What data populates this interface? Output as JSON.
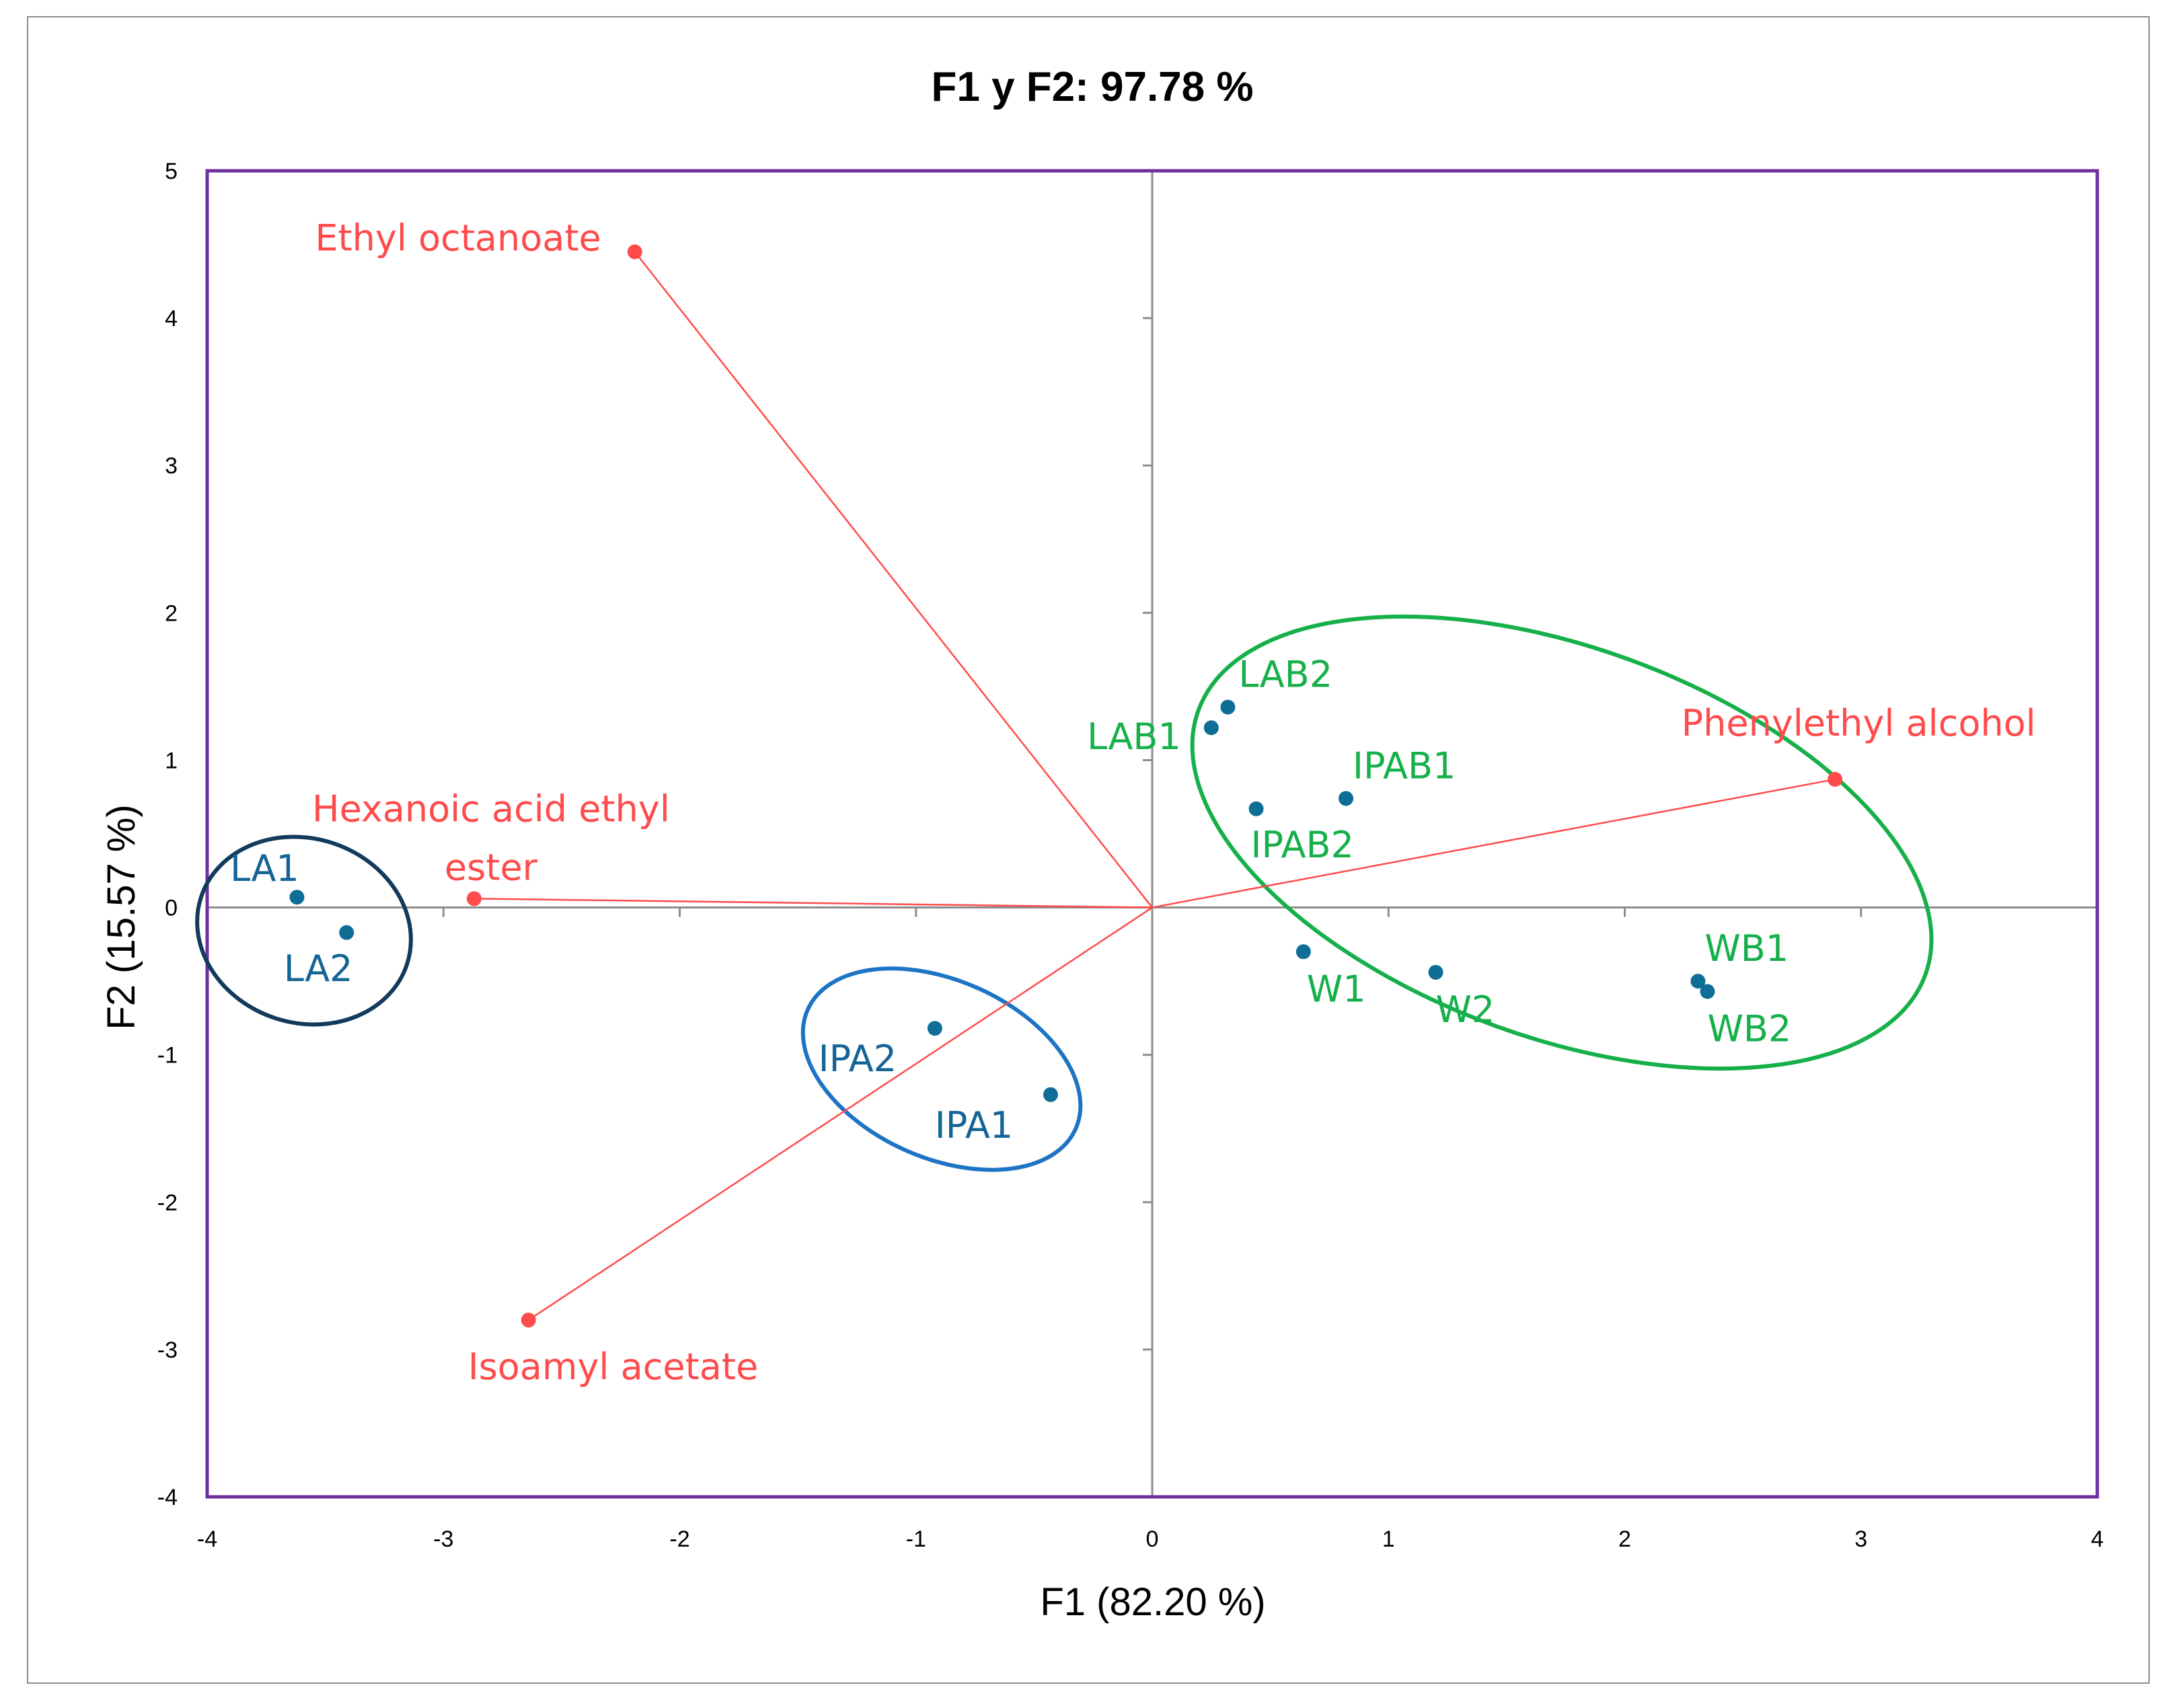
{
  "chart_data": {
    "type": "scatter",
    "title": "F1 y F2: 97.78 %",
    "xlabel": "F1 (82.20 %)",
    "ylabel": "F2 (15.57 %)",
    "xlim": [
      -4,
      4
    ],
    "ylim": [
      -4,
      5
    ],
    "xticks": [
      -4,
      -3,
      -2,
      -1,
      0,
      1,
      2,
      3,
      4
    ],
    "yticks": [
      -4,
      -3,
      -2,
      -1,
      0,
      1,
      2,
      3,
      4,
      5
    ],
    "colors": {
      "variable": "#ff4b4b",
      "observation_point": "#0f6e96",
      "label_la": "#146496",
      "label_green": "#16b04a",
      "ellipse_la": "#123a5c",
      "ellipse_ipa": "#1e74c4",
      "ellipse_green": "#16b04a",
      "frame": "#7030a0",
      "axis": "#8c8c8c"
    },
    "variables": [
      {
        "name": "Ethyl octanoate",
        "x": -2.19,
        "y": 4.45
      },
      {
        "name": "Hexanoic acid ethyl ester",
        "line1": "Hexanoic acid ethyl",
        "line2": "ester",
        "x": -2.87,
        "y": 0.06
      },
      {
        "name": "Isoamyl acetate",
        "x": -2.64,
        "y": -2.8
      },
      {
        "name": "Phenylethyl alcohol",
        "x": 2.89,
        "y": 0.87
      }
    ],
    "observations": [
      {
        "name": "LA1",
        "x": -3.62,
        "y": 0.07,
        "group": "LA"
      },
      {
        "name": "LA2",
        "x": -3.41,
        "y": -0.17,
        "group": "LA"
      },
      {
        "name": "IPA2",
        "x": -0.92,
        "y": -0.82,
        "group": "IPA"
      },
      {
        "name": "IPA1",
        "x": -0.43,
        "y": -1.27,
        "group": "IPA"
      },
      {
        "name": "LAB1",
        "x": 0.25,
        "y": 1.22,
        "group": "B"
      },
      {
        "name": "LAB2",
        "x": 0.32,
        "y": 1.36,
        "group": "B"
      },
      {
        "name": "IPAB1",
        "x": 0.82,
        "y": 0.74,
        "group": "B"
      },
      {
        "name": "IPAB2",
        "x": 0.44,
        "y": 0.67,
        "group": "B"
      },
      {
        "name": "W1",
        "x": 0.64,
        "y": -0.3,
        "group": "B"
      },
      {
        "name": "W2",
        "x": 1.2,
        "y": -0.44,
        "group": "B"
      },
      {
        "name": "WB1",
        "x": 2.31,
        "y": -0.5,
        "group": "B"
      },
      {
        "name": "WB2",
        "x": 2.35,
        "y": -0.57,
        "group": "B"
      }
    ],
    "groups": [
      {
        "name": "LA",
        "members": [
          "LA1",
          "LA2"
        ]
      },
      {
        "name": "IPA",
        "members": [
          "IPA1",
          "IPA2"
        ]
      },
      {
        "name": "B",
        "members": [
          "LAB1",
          "LAB2",
          "IPAB1",
          "IPAB2",
          "W1",
          "W2",
          "WB1",
          "WB2"
        ]
      }
    ]
  }
}
